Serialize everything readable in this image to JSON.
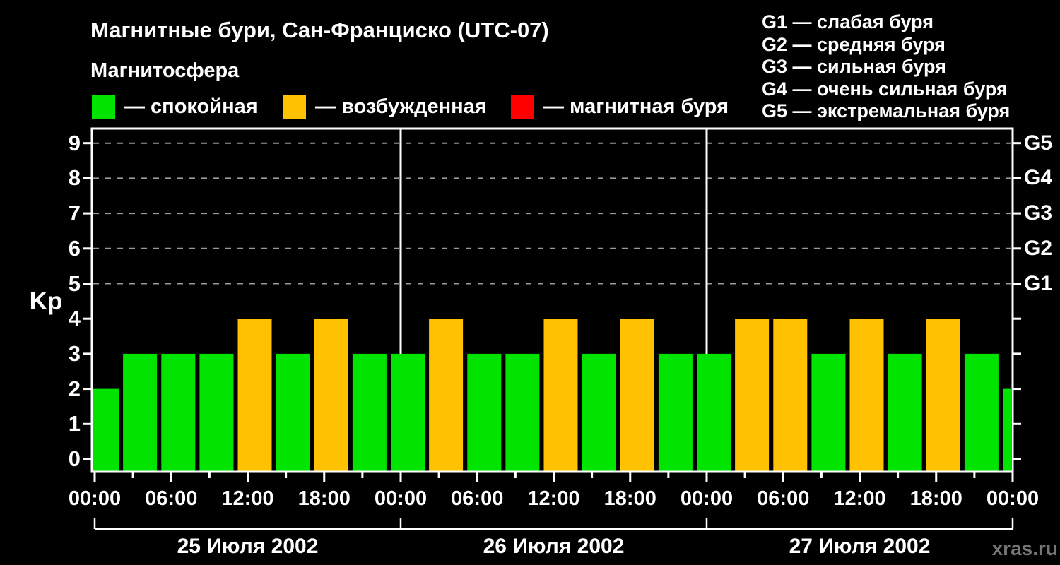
{
  "header": {
    "title": "Магнитные бури, Сан-Франциско (UTC-07)",
    "subtitle": "Магнитосфера"
  },
  "legend": {
    "items": [
      {
        "name": "quiet",
        "color": "#00e400",
        "label": "— спокойная"
      },
      {
        "name": "excited",
        "color": "#ffc200",
        "label": "— возбужденная"
      },
      {
        "name": "storm",
        "color": "#ff0000",
        "label": "— магнитная буря"
      }
    ]
  },
  "storm_scale_legend": {
    "lines": [
      "G1 — слабая буря",
      "G2 — средняя буря",
      "G3 — сильная буря",
      "G4 — очень сильная буря",
      "G5 — экстремальная буря"
    ]
  },
  "chart_data": {
    "type": "bar",
    "title": "Магнитные бури, Сан-Франциско (UTC-07)",
    "ylabel": "Kp",
    "ylim": [
      -0.4,
      9.4
    ],
    "yticks": [
      0,
      1,
      2,
      3,
      4,
      5,
      6,
      7,
      8,
      9
    ],
    "grid_levels": [
      5,
      6,
      7,
      8,
      9
    ],
    "grid_color": "#9a9a9a",
    "x_interval_hours": 3,
    "x_hours": [
      0,
      3,
      6,
      9,
      12,
      15,
      18,
      21,
      24,
      27,
      30,
      33,
      36,
      39,
      42,
      45,
      48,
      51,
      54,
      57,
      60,
      63,
      66,
      69,
      72
    ],
    "kp_values": [
      2,
      3,
      3,
      3,
      4,
      3,
      4,
      3,
      3,
      4,
      3,
      3,
      4,
      3,
      4,
      3,
      3,
      4,
      4,
      3,
      4,
      3,
      4,
      3,
      2
    ],
    "bar_states": [
      "quiet",
      "quiet",
      "quiet",
      "quiet",
      "excited",
      "quiet",
      "excited",
      "quiet",
      "quiet",
      "excited",
      "quiet",
      "quiet",
      "excited",
      "quiet",
      "excited",
      "quiet",
      "quiet",
      "excited",
      "excited",
      "quiet",
      "excited",
      "quiet",
      "excited",
      "quiet",
      "quiet"
    ],
    "state_colors": {
      "quiet": "#00e400",
      "excited": "#ffc200",
      "storm": "#ff0000"
    },
    "xtick_labels": [
      "00:00",
      "06:00",
      "12:00",
      "18:00",
      "00:00",
      "06:00",
      "12:00",
      "18:00",
      "00:00",
      "06:00",
      "12:00",
      "18:00",
      "00:00"
    ],
    "day_labels": [
      "25 Июля 2002",
      "26 Июля 2002",
      "27 Июля 2002"
    ],
    "right_axis_labels": [
      {
        "label": "G1",
        "kp": 5
      },
      {
        "label": "G2",
        "kp": 6
      },
      {
        "label": "G3",
        "kp": 7
      },
      {
        "label": "G4",
        "kp": 8
      },
      {
        "label": "G5",
        "kp": 9
      }
    ],
    "legend_position": "top",
    "axis_color": "#ffffff"
  },
  "watermark": "xras.ru"
}
